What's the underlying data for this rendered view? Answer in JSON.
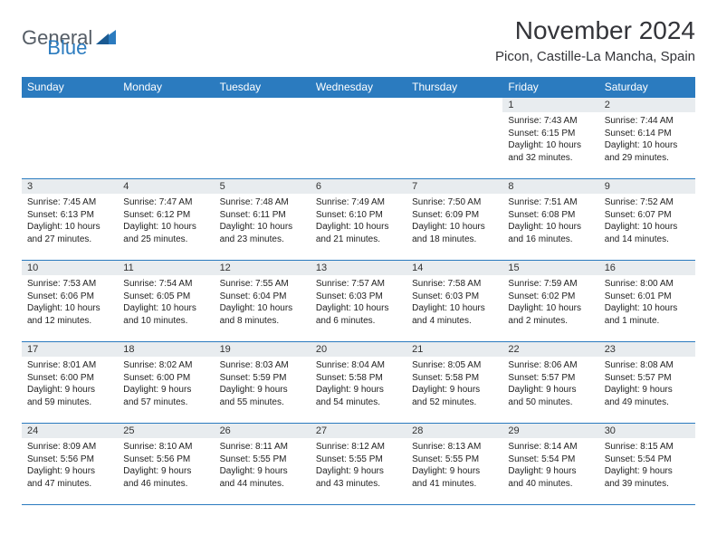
{
  "brand": {
    "part1": "General",
    "part2": "Blue"
  },
  "title": "November 2024",
  "location": "Picon, Castille-La Mancha, Spain",
  "colors": {
    "header_bg": "#2b7bbf",
    "header_text": "#ffffff",
    "daynum_bg": "#e8ecef",
    "border": "#2b7bbf",
    "body_text": "#222222",
    "page_bg": "#ffffff",
    "brand_gray": "#555d66",
    "brand_blue": "#2b7bbf"
  },
  "typography": {
    "title_fontsize": 28,
    "location_fontsize": 15,
    "header_fontsize": 12,
    "cell_fontsize": 10
  },
  "dayNames": [
    "Sunday",
    "Monday",
    "Tuesday",
    "Wednesday",
    "Thursday",
    "Friday",
    "Saturday"
  ],
  "weeks": [
    [
      {
        "day": "",
        "lines": []
      },
      {
        "day": "",
        "lines": []
      },
      {
        "day": "",
        "lines": []
      },
      {
        "day": "",
        "lines": []
      },
      {
        "day": "",
        "lines": []
      },
      {
        "day": "1",
        "lines": [
          "Sunrise: 7:43 AM",
          "Sunset: 6:15 PM",
          "Daylight: 10 hours and 32 minutes."
        ]
      },
      {
        "day": "2",
        "lines": [
          "Sunrise: 7:44 AM",
          "Sunset: 6:14 PM",
          "Daylight: 10 hours and 29 minutes."
        ]
      }
    ],
    [
      {
        "day": "3",
        "lines": [
          "Sunrise: 7:45 AM",
          "Sunset: 6:13 PM",
          "Daylight: 10 hours and 27 minutes."
        ]
      },
      {
        "day": "4",
        "lines": [
          "Sunrise: 7:47 AM",
          "Sunset: 6:12 PM",
          "Daylight: 10 hours and 25 minutes."
        ]
      },
      {
        "day": "5",
        "lines": [
          "Sunrise: 7:48 AM",
          "Sunset: 6:11 PM",
          "Daylight: 10 hours and 23 minutes."
        ]
      },
      {
        "day": "6",
        "lines": [
          "Sunrise: 7:49 AM",
          "Sunset: 6:10 PM",
          "Daylight: 10 hours and 21 minutes."
        ]
      },
      {
        "day": "7",
        "lines": [
          "Sunrise: 7:50 AM",
          "Sunset: 6:09 PM",
          "Daylight: 10 hours and 18 minutes."
        ]
      },
      {
        "day": "8",
        "lines": [
          "Sunrise: 7:51 AM",
          "Sunset: 6:08 PM",
          "Daylight: 10 hours and 16 minutes."
        ]
      },
      {
        "day": "9",
        "lines": [
          "Sunrise: 7:52 AM",
          "Sunset: 6:07 PM",
          "Daylight: 10 hours and 14 minutes."
        ]
      }
    ],
    [
      {
        "day": "10",
        "lines": [
          "Sunrise: 7:53 AM",
          "Sunset: 6:06 PM",
          "Daylight: 10 hours and 12 minutes."
        ]
      },
      {
        "day": "11",
        "lines": [
          "Sunrise: 7:54 AM",
          "Sunset: 6:05 PM",
          "Daylight: 10 hours and 10 minutes."
        ]
      },
      {
        "day": "12",
        "lines": [
          "Sunrise: 7:55 AM",
          "Sunset: 6:04 PM",
          "Daylight: 10 hours and 8 minutes."
        ]
      },
      {
        "day": "13",
        "lines": [
          "Sunrise: 7:57 AM",
          "Sunset: 6:03 PM",
          "Daylight: 10 hours and 6 minutes."
        ]
      },
      {
        "day": "14",
        "lines": [
          "Sunrise: 7:58 AM",
          "Sunset: 6:03 PM",
          "Daylight: 10 hours and 4 minutes."
        ]
      },
      {
        "day": "15",
        "lines": [
          "Sunrise: 7:59 AM",
          "Sunset: 6:02 PM",
          "Daylight: 10 hours and 2 minutes."
        ]
      },
      {
        "day": "16",
        "lines": [
          "Sunrise: 8:00 AM",
          "Sunset: 6:01 PM",
          "Daylight: 10 hours and 1 minute."
        ]
      }
    ],
    [
      {
        "day": "17",
        "lines": [
          "Sunrise: 8:01 AM",
          "Sunset: 6:00 PM",
          "Daylight: 9 hours and 59 minutes."
        ]
      },
      {
        "day": "18",
        "lines": [
          "Sunrise: 8:02 AM",
          "Sunset: 6:00 PM",
          "Daylight: 9 hours and 57 minutes."
        ]
      },
      {
        "day": "19",
        "lines": [
          "Sunrise: 8:03 AM",
          "Sunset: 5:59 PM",
          "Daylight: 9 hours and 55 minutes."
        ]
      },
      {
        "day": "20",
        "lines": [
          "Sunrise: 8:04 AM",
          "Sunset: 5:58 PM",
          "Daylight: 9 hours and 54 minutes."
        ]
      },
      {
        "day": "21",
        "lines": [
          "Sunrise: 8:05 AM",
          "Sunset: 5:58 PM",
          "Daylight: 9 hours and 52 minutes."
        ]
      },
      {
        "day": "22",
        "lines": [
          "Sunrise: 8:06 AM",
          "Sunset: 5:57 PM",
          "Daylight: 9 hours and 50 minutes."
        ]
      },
      {
        "day": "23",
        "lines": [
          "Sunrise: 8:08 AM",
          "Sunset: 5:57 PM",
          "Daylight: 9 hours and 49 minutes."
        ]
      }
    ],
    [
      {
        "day": "24",
        "lines": [
          "Sunrise: 8:09 AM",
          "Sunset: 5:56 PM",
          "Daylight: 9 hours and 47 minutes."
        ]
      },
      {
        "day": "25",
        "lines": [
          "Sunrise: 8:10 AM",
          "Sunset: 5:56 PM",
          "Daylight: 9 hours and 46 minutes."
        ]
      },
      {
        "day": "26",
        "lines": [
          "Sunrise: 8:11 AM",
          "Sunset: 5:55 PM",
          "Daylight: 9 hours and 44 minutes."
        ]
      },
      {
        "day": "27",
        "lines": [
          "Sunrise: 8:12 AM",
          "Sunset: 5:55 PM",
          "Daylight: 9 hours and 43 minutes."
        ]
      },
      {
        "day": "28",
        "lines": [
          "Sunrise: 8:13 AM",
          "Sunset: 5:55 PM",
          "Daylight: 9 hours and 41 minutes."
        ]
      },
      {
        "day": "29",
        "lines": [
          "Sunrise: 8:14 AM",
          "Sunset: 5:54 PM",
          "Daylight: 9 hours and 40 minutes."
        ]
      },
      {
        "day": "30",
        "lines": [
          "Sunrise: 8:15 AM",
          "Sunset: 5:54 PM",
          "Daylight: 9 hours and 39 minutes."
        ]
      }
    ]
  ]
}
